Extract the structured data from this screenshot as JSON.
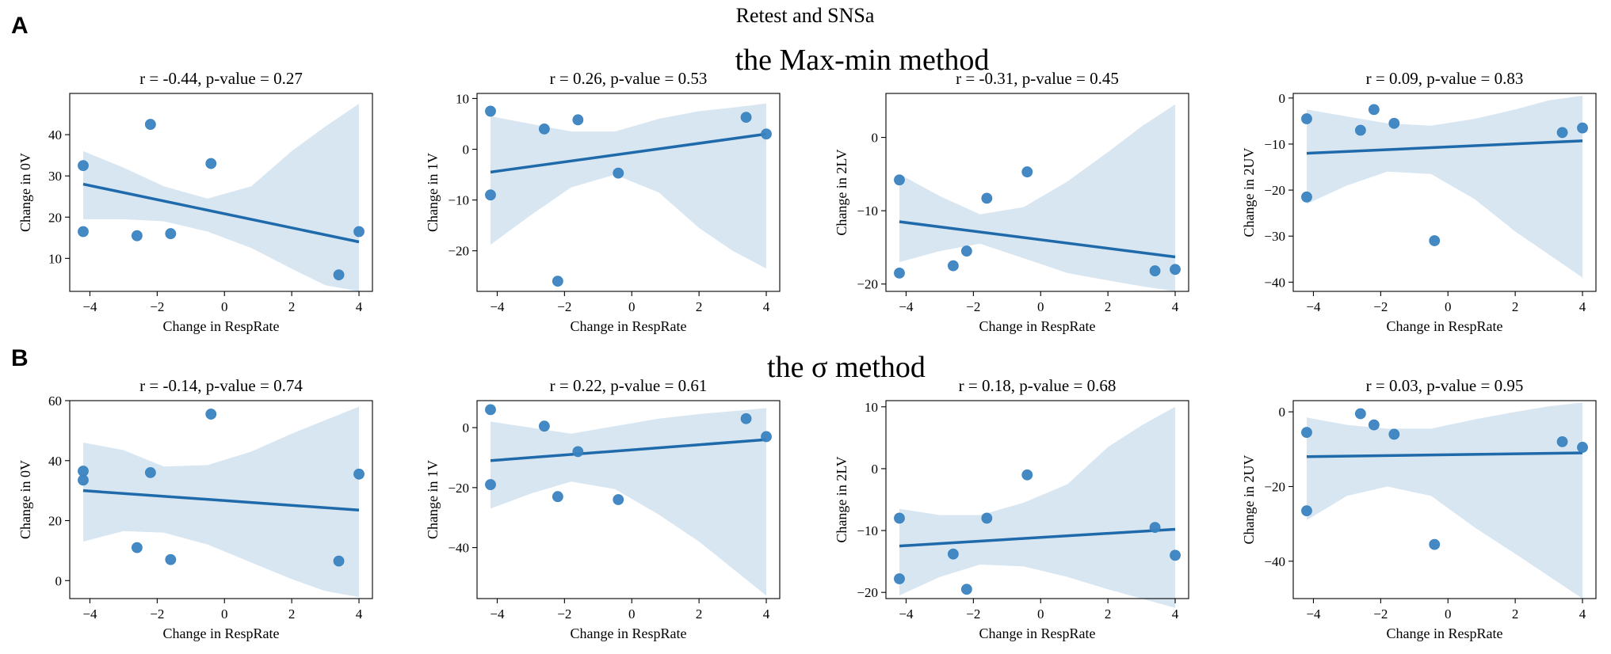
{
  "figure": {
    "suptitle": "Retest and SNSa",
    "panel_labels": [
      "A",
      "B"
    ],
    "row_titles": [
      "the Max-min method",
      "the σ method"
    ],
    "colors": {
      "point": "#3a83c0",
      "line": "#1f6aaa",
      "band": "#d8e6f2",
      "text": "#000000"
    }
  },
  "chart_data": [
    {
      "type": "scatter",
      "row": 0,
      "col": 0,
      "title": "r = -0.44, p-value = 0.27",
      "xlabel": "Change in RespRate",
      "ylabel": "Change in 0V",
      "xlim": [
        -4.6,
        4.4
      ],
      "ylim": [
        2,
        50
      ],
      "xticks": [
        -4,
        -2,
        0,
        2,
        4
      ],
      "yticks": [
        10,
        20,
        30,
        40
      ],
      "x": [
        -4.2,
        -4.2,
        -2.6,
        -2.2,
        -1.6,
        -0.4,
        3.4,
        4.0
      ],
      "y": [
        32.5,
        16.5,
        15.5,
        42.5,
        16.0,
        33.0,
        6.0,
        16.5
      ],
      "fit": {
        "x": [
          -4.2,
          4.0
        ],
        "y": [
          28.0,
          14.0
        ]
      },
      "ci": {
        "x": [
          -4.2,
          -3.0,
          -1.8,
          -0.5,
          0.8,
          2.0,
          3.0,
          4.0
        ],
        "lower": [
          19.5,
          19.5,
          19.0,
          16.5,
          12.5,
          7.5,
          3.5,
          2.0
        ],
        "upper": [
          36.0,
          32.0,
          27.5,
          24.5,
          27.5,
          36.0,
          42.0,
          47.5
        ]
      }
    },
    {
      "type": "scatter",
      "row": 0,
      "col": 1,
      "title": "r = 0.26, p-value = 0.53",
      "xlabel": "Change in RespRate",
      "ylabel": "Change in 1V",
      "xlim": [
        -4.6,
        4.4
      ],
      "ylim": [
        -28,
        11
      ],
      "xticks": [
        -4,
        -2,
        0,
        2,
        4
      ],
      "yticks": [
        -20,
        -10,
        0,
        10
      ],
      "x": [
        -4.2,
        -4.2,
        -2.6,
        -2.2,
        -1.6,
        -0.4,
        3.4,
        4.0
      ],
      "y": [
        7.5,
        -9.0,
        4.0,
        -26.0,
        5.8,
        -4.7,
        6.3,
        3.0
      ],
      "fit": {
        "x": [
          -4.2,
          4.0
        ],
        "y": [
          -4.5,
          3.0
        ]
      },
      "ci": {
        "x": [
          -4.2,
          -3.0,
          -1.8,
          -0.5,
          0.8,
          2.0,
          3.0,
          4.0
        ],
        "lower": [
          -18.8,
          -13.0,
          -7.5,
          -5.0,
          -8.5,
          -15.5,
          -20.0,
          -23.5
        ],
        "upper": [
          6.5,
          5.0,
          3.5,
          3.5,
          6.0,
          7.5,
          8.2,
          9.0
        ]
      }
    },
    {
      "type": "scatter",
      "row": 0,
      "col": 2,
      "title": "r = -0.31, p-value = 0.45",
      "xlabel": "Change in RespRate",
      "ylabel": "Change in 2LV",
      "xlim": [
        -4.6,
        4.4
      ],
      "ylim": [
        -21,
        6
      ],
      "xticks": [
        -4,
        -2,
        0,
        2,
        4
      ],
      "yticks": [
        -20,
        -10,
        0
      ],
      "x": [
        -4.2,
        -4.2,
        -2.6,
        -2.2,
        -1.6,
        -0.4,
        3.4,
        4.0
      ],
      "y": [
        -5.8,
        -18.5,
        -17.5,
        -15.5,
        -8.3,
        -4.7,
        -18.2,
        -18.0
      ],
      "fit": {
        "x": [
          -4.2,
          4.0
        ],
        "y": [
          -11.5,
          -16.3
        ]
      },
      "ci": {
        "x": [
          -4.2,
          -3.0,
          -1.8,
          -0.5,
          0.8,
          2.0,
          3.0,
          4.0
        ],
        "lower": [
          -17.0,
          -15.5,
          -14.5,
          -16.5,
          -18.5,
          -19.5,
          -20.3,
          -21.0
        ],
        "upper": [
          -5.0,
          -8.0,
          -10.5,
          -9.5,
          -6.0,
          -2.0,
          1.5,
          4.5
        ]
      }
    },
    {
      "type": "scatter",
      "row": 0,
      "col": 3,
      "title": "r = 0.09, p-value = 0.83",
      "xlabel": "Change in RespRate",
      "ylabel": "Change in 2UV",
      "xlim": [
        -4.6,
        4.4
      ],
      "ylim": [
        -42,
        1
      ],
      "xticks": [
        -4,
        -2,
        0,
        2,
        4
      ],
      "yticks": [
        -40,
        -30,
        -20,
        -10,
        0
      ],
      "x": [
        -4.2,
        -4.2,
        -2.6,
        -2.2,
        -1.6,
        -0.4,
        3.4,
        4.0
      ],
      "y": [
        -4.5,
        -21.5,
        -7.0,
        -2.5,
        -5.5,
        -31.0,
        -7.5,
        -6.5
      ],
      "fit": {
        "x": [
          -4.2,
          4.0
        ],
        "y": [
          -12.0,
          -9.3
        ]
      },
      "ci": {
        "x": [
          -4.2,
          -3.0,
          -1.8,
          -0.5,
          0.8,
          2.0,
          3.0,
          4.0
        ],
        "lower": [
          -23.0,
          -19.0,
          -16.0,
          -16.5,
          -22.0,
          -29.0,
          -34.0,
          -39.0
        ],
        "upper": [
          -2.5,
          -4.0,
          -5.5,
          -6.0,
          -4.5,
          -2.5,
          -0.5,
          0.5
        ]
      }
    },
    {
      "type": "scatter",
      "row": 1,
      "col": 0,
      "title": "r = -0.14, p-value = 0.74",
      "xlabel": "Change in RespRate",
      "ylabel": "Change in 0V",
      "xlim": [
        -4.6,
        4.4
      ],
      "ylim": [
        -6,
        60
      ],
      "xticks": [
        -4,
        -2,
        0,
        2,
        4
      ],
      "yticks": [
        0,
        20,
        40,
        60
      ],
      "x": [
        -4.2,
        -4.2,
        -2.6,
        -2.2,
        -1.6,
        -0.4,
        3.4,
        4.0
      ],
      "y": [
        36.5,
        33.5,
        11.0,
        36.0,
        7.0,
        55.5,
        6.5,
        35.5
      ],
      "fit": {
        "x": [
          -4.2,
          4.0
        ],
        "y": [
          30.0,
          23.5
        ]
      },
      "ci": {
        "x": [
          -4.2,
          -3.0,
          -1.8,
          -0.5,
          0.8,
          2.0,
          3.0,
          4.0
        ],
        "lower": [
          13.0,
          16.5,
          16.0,
          12.0,
          6.0,
          0.5,
          -3.5,
          -5.5
        ],
        "upper": [
          46.0,
          43.5,
          38.0,
          38.5,
          43.0,
          49.0,
          53.5,
          58.0
        ]
      }
    },
    {
      "type": "scatter",
      "row": 1,
      "col": 1,
      "title": "r = 0.22, p-value = 0.61",
      "xlabel": "Change in RespRate",
      "ylabel": "Change in 1V",
      "xlim": [
        -4.6,
        4.4
      ],
      "ylim": [
        -57,
        9
      ],
      "xticks": [
        -4,
        -2,
        0,
        2,
        4
      ],
      "yticks": [
        -40,
        -20,
        0
      ],
      "x": [
        -4.2,
        -4.2,
        -2.6,
        -2.2,
        -1.6,
        -0.4,
        3.4,
        4.0
      ],
      "y": [
        6.0,
        -19.0,
        0.5,
        -23.0,
        -8.0,
        -24.0,
        3.0,
        -3.0
      ],
      "fit": {
        "x": [
          -4.2,
          4.0
        ],
        "y": [
          -11.0,
          -4.0
        ]
      },
      "ci": {
        "x": [
          -4.2,
          -3.0,
          -1.8,
          -0.5,
          0.8,
          2.0,
          3.0,
          4.0
        ],
        "lower": [
          -27.0,
          -22.0,
          -18.0,
          -20.5,
          -29.0,
          -38.0,
          -47.0,
          -56.0
        ],
        "upper": [
          2.0,
          0.0,
          -2.0,
          0.5,
          3.0,
          4.5,
          5.5,
          6.5
        ]
      }
    },
    {
      "type": "scatter",
      "row": 1,
      "col": 2,
      "title": "r = 0.18, p-value = 0.68",
      "xlabel": "Change in RespRate",
      "ylabel": "Change in 2LV",
      "xlim": [
        -4.6,
        4.4
      ],
      "ylim": [
        -21,
        11
      ],
      "xticks": [
        -4,
        -2,
        0,
        2,
        4
      ],
      "yticks": [
        -20,
        -10,
        0,
        10
      ],
      "x": [
        -4.2,
        -4.2,
        -2.6,
        -2.2,
        -1.6,
        -0.4,
        3.4,
        4.0
      ],
      "y": [
        -8.0,
        -17.8,
        -13.8,
        -19.5,
        -8.0,
        -1.0,
        -9.5,
        -14.0
      ],
      "fit": {
        "x": [
          -4.2,
          4.0
        ],
        "y": [
          -12.5,
          -9.8
        ]
      },
      "ci": {
        "x": [
          -4.2,
          -3.0,
          -1.8,
          -0.5,
          0.8,
          2.0,
          3.0,
          4.0
        ],
        "lower": [
          -20.5,
          -17.5,
          -15.5,
          -15.8,
          -17.5,
          -19.5,
          -21.0,
          -22.5
        ],
        "upper": [
          -6.5,
          -7.5,
          -7.5,
          -5.5,
          -2.5,
          3.5,
          7.0,
          10.0
        ]
      }
    },
    {
      "type": "scatter",
      "row": 1,
      "col": 3,
      "title": "r = 0.03, p-value = 0.95",
      "xlabel": "Change in RespRate",
      "ylabel": "Change in 2UV",
      "xlim": [
        -4.6,
        4.4
      ],
      "ylim": [
        -50,
        3
      ],
      "xticks": [
        -4,
        -2,
        0,
        2,
        4
      ],
      "yticks": [
        -40,
        -20,
        0
      ],
      "x": [
        -4.2,
        -4.2,
        -2.6,
        -2.2,
        -1.6,
        -0.4,
        3.4,
        4.0
      ],
      "y": [
        -5.5,
        -26.5,
        -0.5,
        -3.5,
        -6.0,
        -35.5,
        -8.0,
        -9.5
      ],
      "fit": {
        "x": [
          -4.2,
          4.0
        ],
        "y": [
          -12.0,
          -11.0
        ]
      },
      "ci": {
        "x": [
          -4.2,
          -3.0,
          -1.8,
          -0.5,
          0.8,
          2.0,
          3.0,
          4.0
        ],
        "lower": [
          -29.0,
          -22.5,
          -20.0,
          -22.5,
          -31.0,
          -38.0,
          -44.0,
          -50.0
        ],
        "upper": [
          -1.5,
          -3.5,
          -4.5,
          -4.5,
          -2.0,
          0.0,
          1.5,
          2.5
        ]
      }
    }
  ]
}
